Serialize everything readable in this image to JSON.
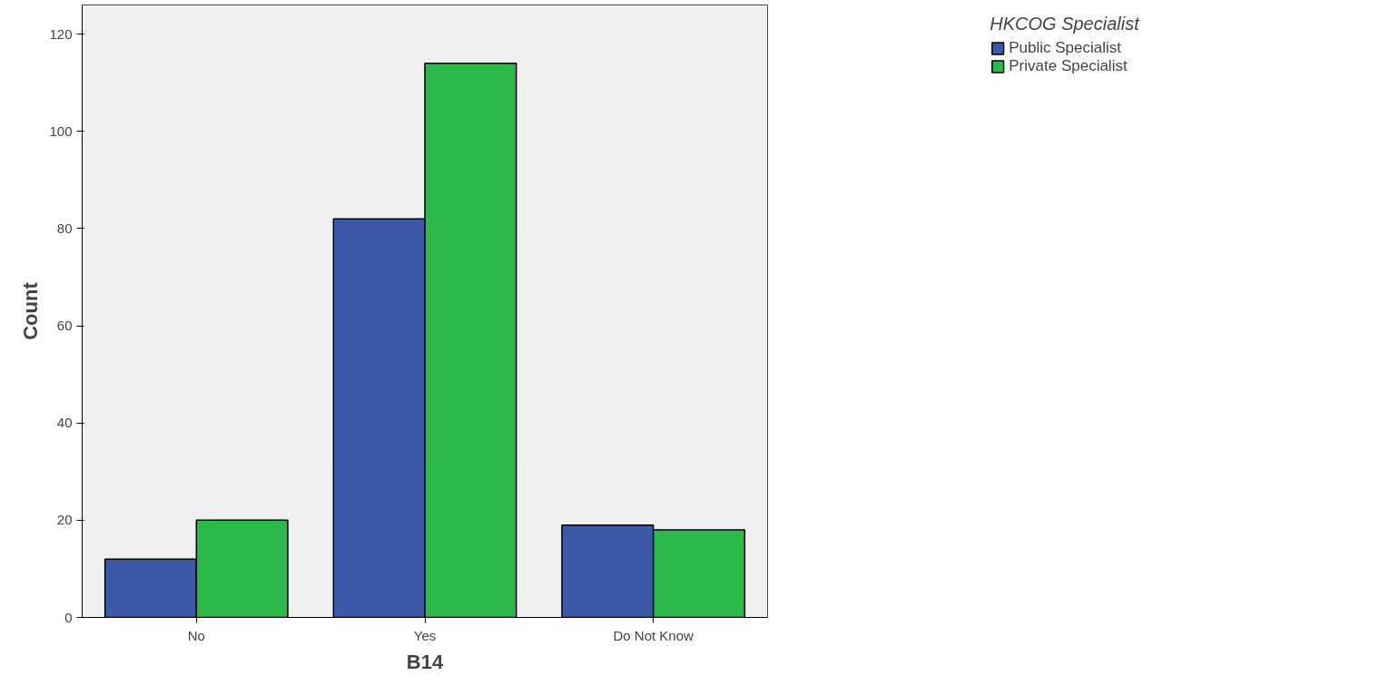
{
  "chart_data": {
    "type": "bar",
    "xlabel": "B14",
    "ylabel": "Count",
    "legend_title": "HKCOG Specialist",
    "categories": [
      "No",
      "Yes",
      "Do Not Know"
    ],
    "series": [
      {
        "name": "Public Specialist",
        "color": "#3c58a8",
        "values": [
          12,
          82,
          19
        ]
      },
      {
        "name": "Private Specialist",
        "color": "#2db84a",
        "values": [
          20,
          114,
          18
        ]
      }
    ],
    "ylim": [
      0,
      126
    ],
    "yticks": [
      0,
      20,
      40,
      60,
      80,
      100,
      120
    ],
    "grid": false,
    "legend": "top right"
  }
}
